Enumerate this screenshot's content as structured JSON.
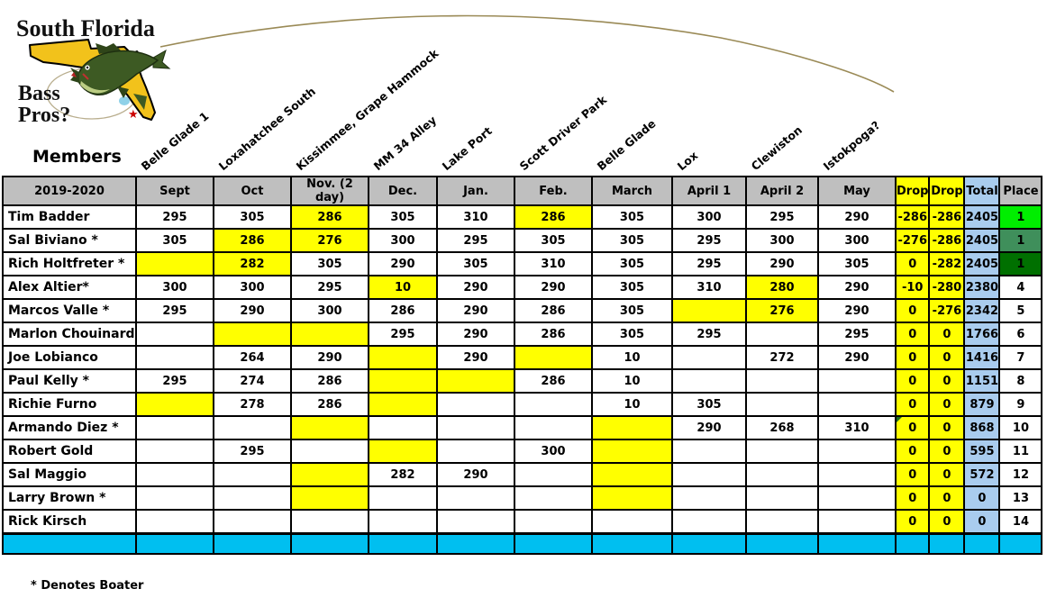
{
  "logo": {
    "line1": "South Florida",
    "line2": "Bass",
    "line3": "Pros?"
  },
  "members_label": "Members",
  "season_label": "2019-2020",
  "footnote": "* Denotes Boater",
  "columns": [
    {
      "month": "Sept",
      "lake": "Belle Glade 1"
    },
    {
      "month": "Oct",
      "lake": "Loxahatchee South"
    },
    {
      "month": "Nov. (2 day)",
      "lake": "Kissimmee, Grape Hammock"
    },
    {
      "month": "Dec.",
      "lake": "MM 34 Alley"
    },
    {
      "month": "Jan.",
      "lake": "Lake Port"
    },
    {
      "month": "Feb.",
      "lake": "Scott Driver Park"
    },
    {
      "month": "March",
      "lake": "Belle Glade"
    },
    {
      "month": "April 1",
      "lake": "Lox"
    },
    {
      "month": "April 2",
      "lake": "Clewiston"
    },
    {
      "month": "May",
      "lake": "Istokpoga?"
    }
  ],
  "extra_columns": [
    "Drop",
    "Drop",
    "Total",
    "Place"
  ],
  "colors": {
    "header_gray": "#BFBFBF",
    "highlight_yellow": "#FFFF00",
    "total_blue": "#A9CCEE",
    "band_cyan": "#00BFF0",
    "place_green_1": "#00EE00",
    "place_green_2": "#3F8F5B",
    "place_green_3": "#007000",
    "map_yellow": "#F2C21B",
    "line_tan": "#9A8A56"
  },
  "rows": [
    {
      "name": "Tim Badder",
      "scores": [
        "295",
        "305",
        {
          "v": "286",
          "hl": true
        },
        "305",
        "310",
        {
          "v": "286",
          "hl": true
        },
        "305",
        "300",
        "295",
        "290"
      ],
      "drops": [
        "-286",
        "-286"
      ],
      "total": "2405",
      "place": "1",
      "place_level": 1
    },
    {
      "name": "Sal Biviano *",
      "scores": [
        "305",
        {
          "v": "286",
          "hl": true
        },
        {
          "v": "276",
          "hl": true
        },
        "300",
        "295",
        "305",
        "305",
        "295",
        "300",
        "300"
      ],
      "drops": [
        "-276",
        "-286"
      ],
      "total": "2405",
      "place": "1",
      "place_level": 2
    },
    {
      "name": "Rich Holtfreter *",
      "scores": [
        {
          "v": "",
          "hl": true
        },
        {
          "v": "282",
          "hl": true
        },
        "305",
        "290",
        "305",
        "310",
        "305",
        "295",
        "290",
        "305"
      ],
      "drops": [
        "0",
        "-282"
      ],
      "total": "2405",
      "place": "1",
      "place_level": 3
    },
    {
      "name": "Alex Altier*",
      "scores": [
        "300",
        "300",
        "295",
        {
          "v": "10",
          "hl": true
        },
        "290",
        "290",
        "305",
        "310",
        {
          "v": "280",
          "hl": true
        },
        "290"
      ],
      "drops": [
        "-10",
        "-280"
      ],
      "total": "2380",
      "place": "4",
      "place_level": 0
    },
    {
      "name": "Marcos Valle *",
      "scores": [
        "295",
        "290",
        "300",
        "286",
        "290",
        "286",
        "305",
        {
          "v": "",
          "hl": true
        },
        {
          "v": "276",
          "hl": true
        },
        "290"
      ],
      "drops": [
        "0",
        "-276"
      ],
      "total": "2342",
      "place": "5",
      "place_level": 0
    },
    {
      "name": "Marlon Chouinard",
      "scores": [
        "",
        {
          "v": "",
          "hl": true
        },
        {
          "v": "",
          "hl": true
        },
        "295",
        "290",
        "286",
        "305",
        "295",
        "",
        "295"
      ],
      "drops": [
        "0",
        "0"
      ],
      "total": "1766",
      "place": "6",
      "place_level": 0
    },
    {
      "name": "Joe Lobianco",
      "scores": [
        "",
        "264",
        "290",
        {
          "v": "",
          "hl": true
        },
        "290",
        {
          "v": "",
          "hl": true
        },
        "10",
        "",
        "272",
        "290"
      ],
      "drops": [
        "0",
        "0"
      ],
      "total": "1416",
      "place": "7",
      "place_level": 0
    },
    {
      "name": "Paul Kelly *",
      "scores": [
        "295",
        "274",
        "286",
        {
          "v": "",
          "hl": true
        },
        {
          "v": "",
          "hl": true
        },
        "286",
        "10",
        "",
        "",
        ""
      ],
      "drops": [
        "0",
        "0"
      ],
      "total": "1151",
      "place": "8",
      "place_level": 0
    },
    {
      "name": "Richie Furno",
      "scores": [
        {
          "v": "",
          "hl": true
        },
        "278",
        "286",
        {
          "v": "",
          "hl": true
        },
        "",
        "",
        "10",
        "305",
        "",
        ""
      ],
      "drops": [
        "0",
        "0"
      ],
      "total": "879",
      "place": "9",
      "place_level": 0
    },
    {
      "name": "Armando Diez *",
      "scores": [
        "",
        "",
        {
          "v": "",
          "hl": true
        },
        "",
        "",
        "",
        {
          "v": "",
          "hl": true
        },
        "290",
        "268",
        "310"
      ],
      "drops": [
        "0",
        "0"
      ],
      "total": "868",
      "place": "10",
      "place_level": 0,
      "drop_note": true
    },
    {
      "name": "Robert Gold",
      "scores": [
        "",
        "295",
        "",
        {
          "v": "",
          "hl": true
        },
        "",
        "300",
        {
          "v": "",
          "hl": true
        },
        "",
        "",
        ""
      ],
      "drops": [
        "0",
        "0"
      ],
      "total": "595",
      "place": "11",
      "place_level": 0
    },
    {
      "name": "Sal Maggio",
      "scores": [
        "",
        "",
        {
          "v": "",
          "hl": true
        },
        "282",
        "290",
        "",
        {
          "v": "",
          "hl": true
        },
        "",
        "",
        ""
      ],
      "drops": [
        "0",
        "0"
      ],
      "total": "572",
      "place": "12",
      "place_level": 0
    },
    {
      "name": "Larry Brown *",
      "scores": [
        "",
        "",
        {
          "v": "",
          "hl": true
        },
        "",
        "",
        "",
        {
          "v": "",
          "hl": true
        },
        "",
        "",
        ""
      ],
      "drops": [
        "0",
        "0"
      ],
      "total": "0",
      "place": "13",
      "place_level": 0
    },
    {
      "name": "Rick Kirsch",
      "scores": [
        "",
        "",
        "",
        "",
        "",
        "",
        "",
        "",
        "",
        ""
      ],
      "drops": [
        "0",
        "0"
      ],
      "total": "0",
      "place": "14",
      "place_level": 0
    }
  ]
}
